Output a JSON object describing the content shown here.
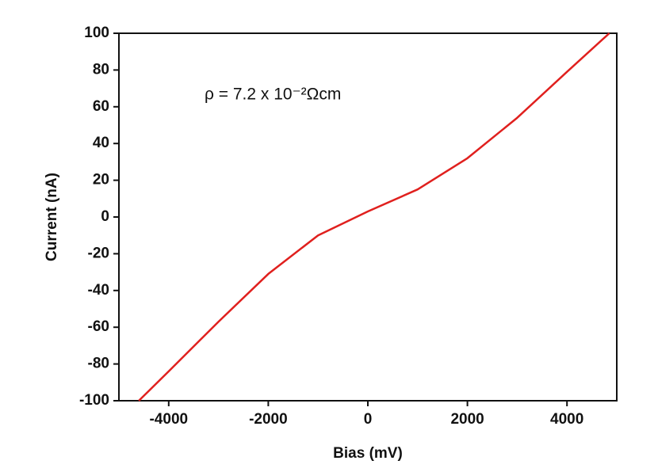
{
  "chart_data": {
    "type": "line",
    "xlabel": "Bias (mV)",
    "ylabel": "Current (nA)",
    "annotation": "ρ = 7.2 x 10⁻²Ωcm",
    "x": [
      -4600,
      -4000,
      -3000,
      -2000,
      -1000,
      0,
      1000,
      2000,
      3000,
      4000,
      4850
    ],
    "series": [
      {
        "color": "#e0201e",
        "values": [
          -100,
          -84,
          -57,
          -31,
          -10,
          3,
          15,
          32,
          54,
          79,
          100
        ]
      }
    ],
    "xlim": [
      -5000,
      5000
    ],
    "xticks": [
      -4000,
      -2000,
      0,
      2000,
      4000
    ],
    "ylim": [
      -100,
      100
    ],
    "yticks": [
      -100,
      -80,
      -60,
      -40,
      -20,
      0,
      20,
      40,
      60,
      80,
      100
    ]
  }
}
